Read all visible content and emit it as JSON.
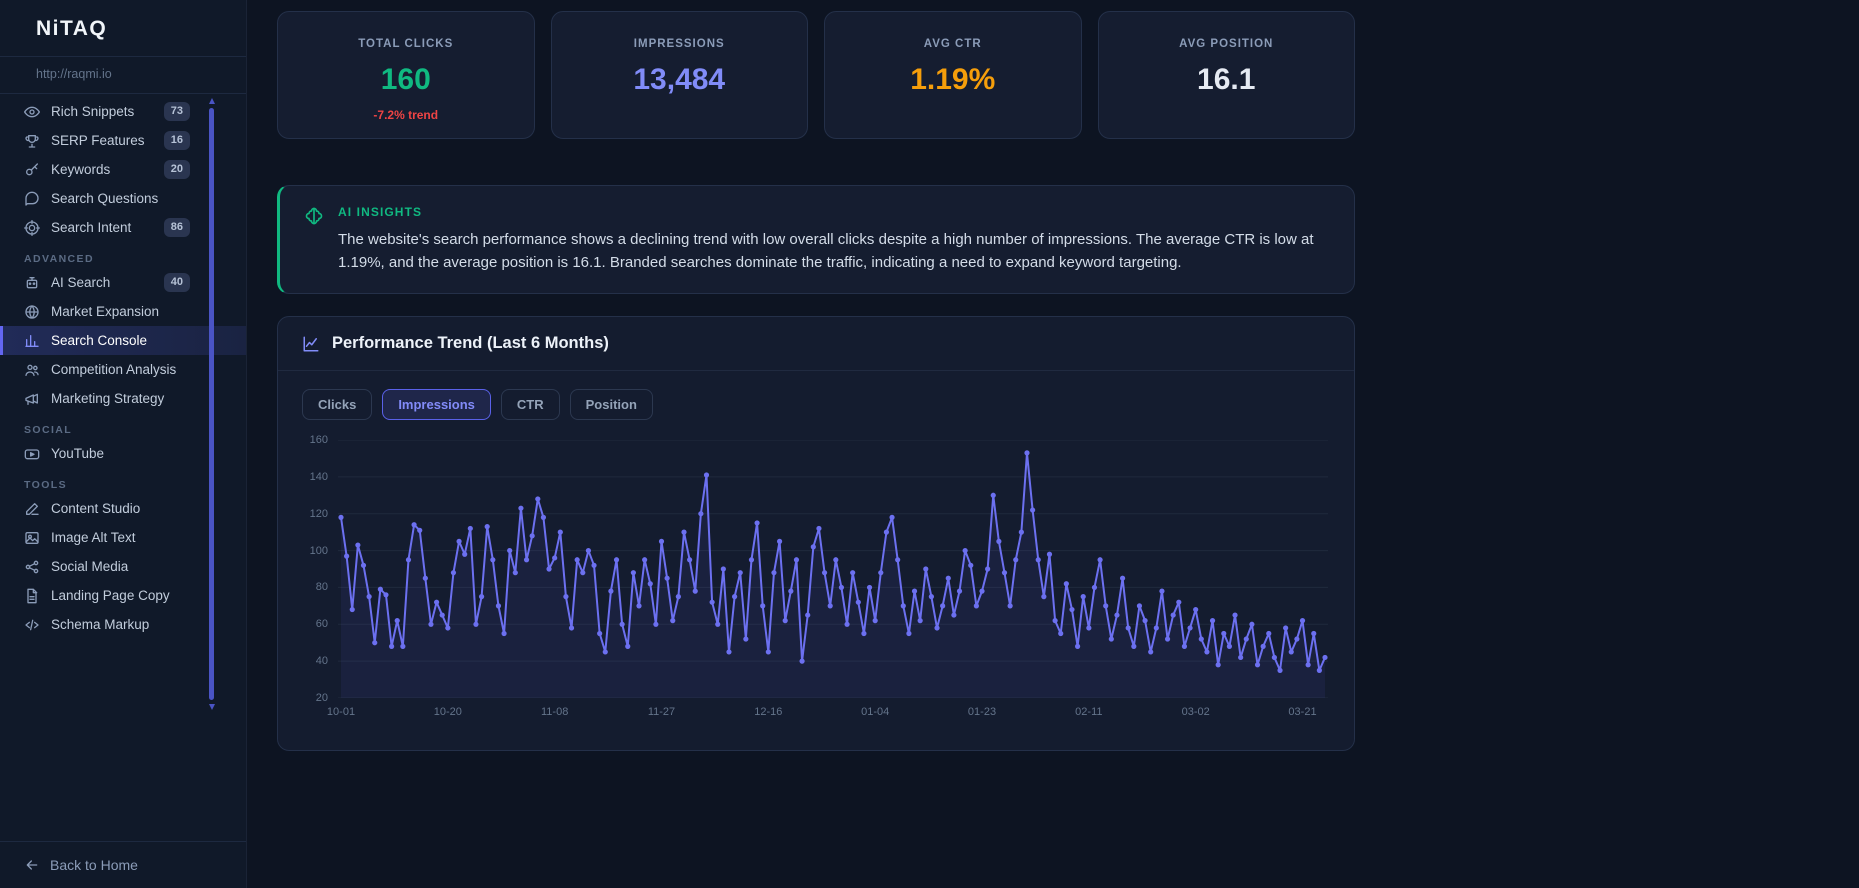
{
  "app": {
    "logo": "NiTAQ",
    "site_url": "http://raqmi.io"
  },
  "theme": {
    "accent": "#6366f1",
    "insight_accent": "#10b981",
    "negative": "#ef4444"
  },
  "sidebar": {
    "back_label": "Back to Home",
    "sections": [
      {
        "title": "",
        "items": [
          {
            "label": "Rich Snippets",
            "icon": "eye",
            "badge": "73",
            "active": false
          },
          {
            "label": "SERP Features",
            "icon": "trophy",
            "badge": "16",
            "active": false
          },
          {
            "label": "Keywords",
            "icon": "key",
            "badge": "20",
            "active": false
          },
          {
            "label": "Search Questions",
            "icon": "comments",
            "badge": "",
            "active": false
          },
          {
            "label": "Search Intent",
            "icon": "target",
            "badge": "86",
            "active": false
          }
        ]
      },
      {
        "title": "ADVANCED",
        "items": [
          {
            "label": "AI Search",
            "icon": "robot",
            "badge": "40",
            "active": false
          },
          {
            "label": "Market Expansion",
            "icon": "globe",
            "badge": "",
            "active": false
          },
          {
            "label": "Search Console",
            "icon": "chart-bar",
            "badge": "",
            "active": true
          },
          {
            "label": "Competition Analysis",
            "icon": "users",
            "badge": "",
            "active": false
          },
          {
            "label": "Marketing Strategy",
            "icon": "megaphone",
            "badge": "",
            "active": false
          }
        ]
      },
      {
        "title": "SOCIAL",
        "items": [
          {
            "label": "YouTube",
            "icon": "youtube",
            "badge": "",
            "active": false
          }
        ]
      },
      {
        "title": "TOOLS",
        "items": [
          {
            "label": "Content Studio",
            "icon": "pen",
            "badge": "",
            "active": false
          },
          {
            "label": "Image Alt Text",
            "icon": "image",
            "badge": "",
            "active": false
          },
          {
            "label": "Social Media",
            "icon": "share",
            "badge": "",
            "active": false
          },
          {
            "label": "Landing Page Copy",
            "icon": "file",
            "badge": "",
            "active": false
          },
          {
            "label": "Schema Markup",
            "icon": "code",
            "badge": "",
            "active": false
          }
        ]
      }
    ]
  },
  "stats": [
    {
      "label": "TOTAL CLICKS",
      "value": "160",
      "color": "#10b981",
      "trend": "-7.2% trend",
      "trend_color": "#ef4444"
    },
    {
      "label": "IMPRESSIONS",
      "value": "13,484",
      "color": "#818cf8",
      "trend": "",
      "trend_color": ""
    },
    {
      "label": "AVG CTR",
      "value": "1.19%",
      "color": "#f59e0b",
      "trend": "",
      "trend_color": ""
    },
    {
      "label": "AVG POSITION",
      "value": "16.1",
      "color": "#e5eaf2",
      "trend": "",
      "trend_color": ""
    }
  ],
  "ai_insights": {
    "title": "AI INSIGHTS",
    "body": "The website's search performance shows a declining trend with low overall clicks despite a high number of impressions. The average CTR is low at 1.19%, and the average position is 16.1. Branded searches dominate the traffic, indicating a need to expand keyword targeting."
  },
  "performance": {
    "title": "Performance Trend (Last 6 Months)",
    "tabs": [
      {
        "label": "Clicks",
        "active": false
      },
      {
        "label": "Impressions",
        "active": true
      },
      {
        "label": "CTR",
        "active": false
      },
      {
        "label": "Position",
        "active": false
      }
    ]
  },
  "chart_data": {
    "type": "line",
    "title": "Performance Trend (Last 6 Months)",
    "xlabel": "",
    "ylabel": "",
    "ylim": [
      20,
      160
    ],
    "y_ticks": [
      20,
      40,
      60,
      80,
      100,
      120,
      140,
      160
    ],
    "grid": true,
    "legend": false,
    "x_tick_labels": [
      "10-01",
      "10-20",
      "11-08",
      "11-27",
      "12-16",
      "01-04",
      "01-23",
      "02-11",
      "03-02",
      "03-21"
    ],
    "x_tick_interval": 19,
    "series": [
      {
        "name": "Impressions",
        "color": "#6c70f0",
        "values": [
          118,
          97,
          68,
          103,
          92,
          75,
          50,
          79,
          76,
          48,
          62,
          48,
          95,
          114,
          111,
          85,
          60,
          72,
          65,
          58,
          88,
          105,
          98,
          112,
          60,
          75,
          113,
          95,
          70,
          55,
          100,
          88,
          123,
          95,
          108,
          128,
          118,
          90,
          96,
          110,
          75,
          58,
          95,
          88,
          100,
          92,
          55,
          45,
          78,
          95,
          60,
          48,
          88,
          70,
          95,
          82,
          60,
          105,
          85,
          62,
          75,
          110,
          95,
          78,
          120,
          141,
          72,
          60,
          90,
          45,
          75,
          88,
          52,
          95,
          115,
          70,
          45,
          88,
          105,
          62,
          78,
          95,
          40,
          65,
          102,
          112,
          88,
          70,
          95,
          80,
          60,
          88,
          72,
          55,
          80,
          62,
          88,
          110,
          118,
          95,
          70,
          55,
          78,
          62,
          90,
          75,
          58,
          70,
          85,
          65,
          78,
          100,
          92,
          70,
          78,
          90,
          130,
          105,
          88,
          70,
          95,
          110,
          153,
          122,
          95,
          75,
          98,
          62,
          55,
          82,
          68,
          48,
          75,
          58,
          80,
          95,
          70,
          52,
          65,
          85,
          58,
          48,
          70,
          62,
          45,
          58,
          78,
          52,
          65,
          72,
          48,
          58,
          68,
          52,
          45,
          62,
          38,
          55,
          48,
          65,
          42,
          52,
          60,
          38,
          48,
          55,
          42,
          35,
          58,
          45,
          52,
          62,
          38,
          55,
          35,
          42
        ]
      }
    ]
  }
}
